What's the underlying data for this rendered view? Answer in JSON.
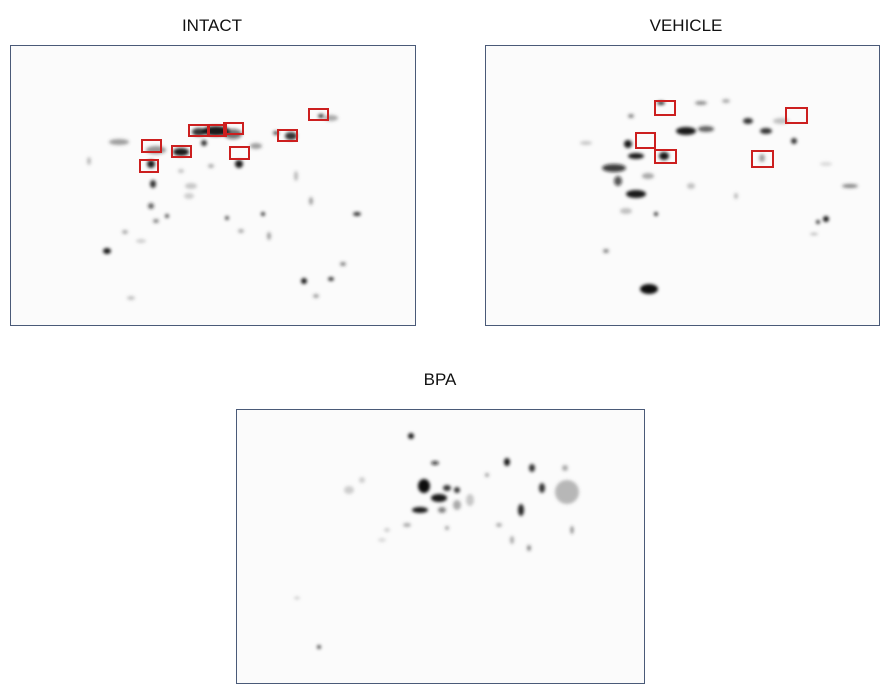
{
  "panels": [
    {
      "id": "intact",
      "title": "INTACT"
    },
    {
      "id": "vehicle",
      "title": "VEHICLE"
    },
    {
      "id": "bpa",
      "title": "BPA"
    }
  ],
  "colors": {
    "frame": "#4a5a78",
    "highlight_box": "#cc1f1f",
    "spot": "#000000"
  }
}
